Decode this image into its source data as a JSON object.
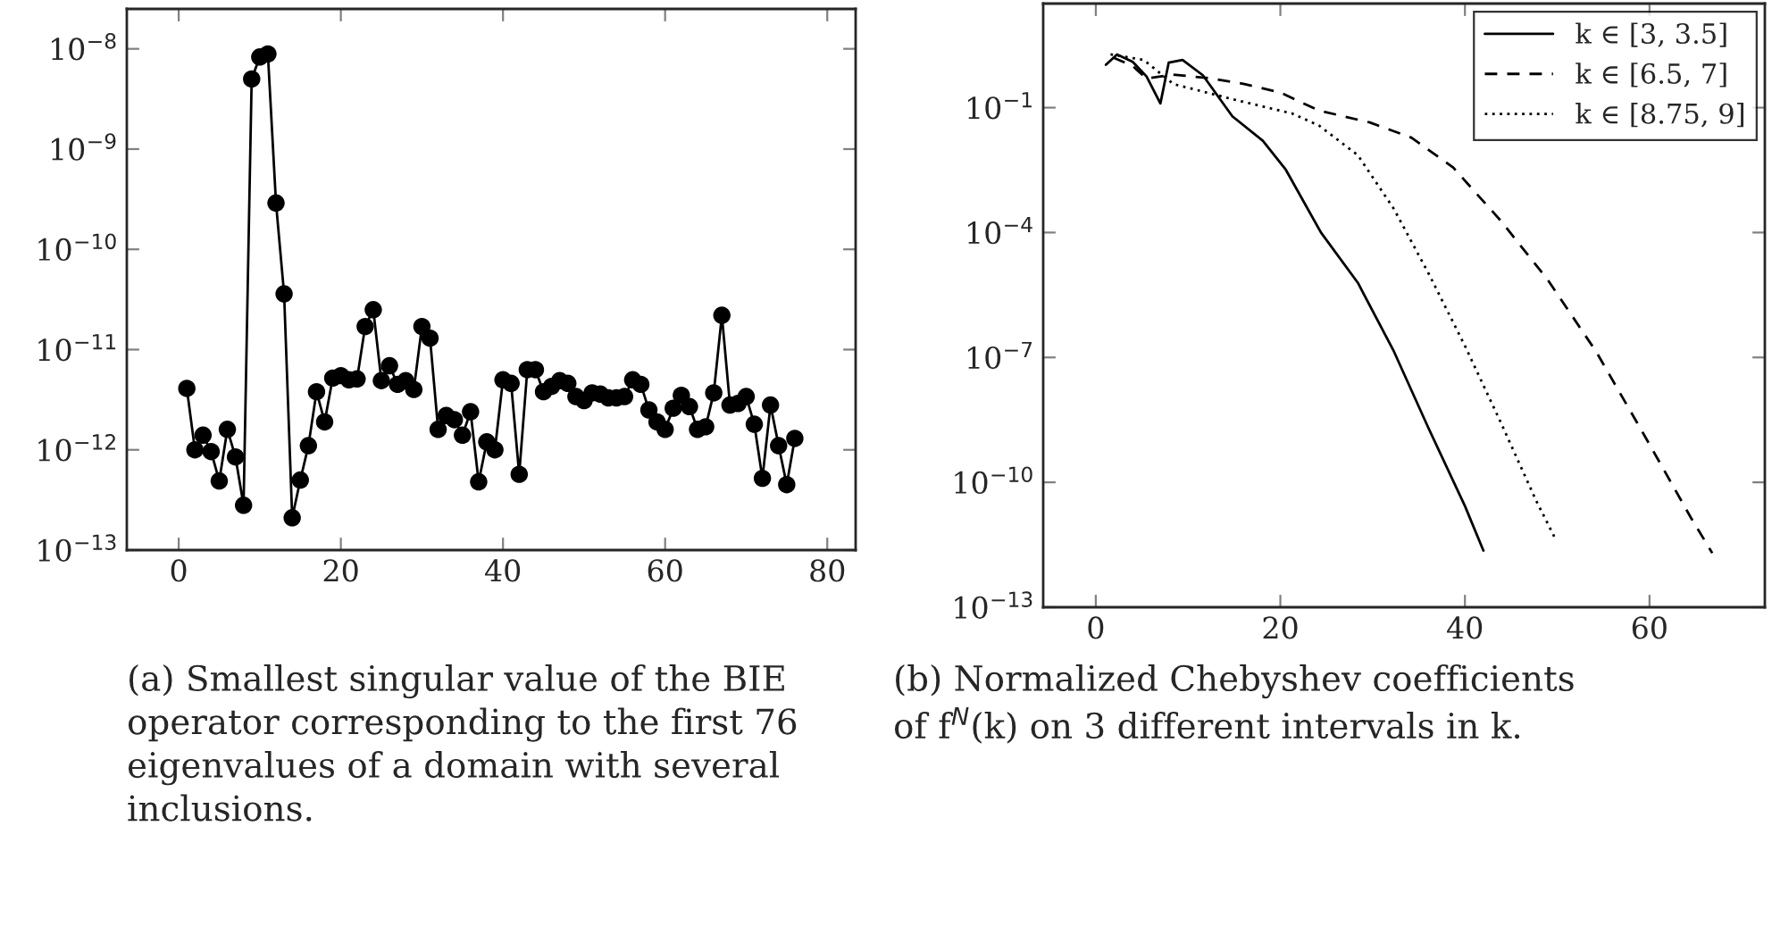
{
  "chart_data": [
    {
      "type": "line",
      "log": true,
      "marker": "circle",
      "grid": false,
      "legend": false,
      "x": [
        1,
        2,
        3,
        4,
        5,
        6,
        7,
        8,
        9,
        10,
        11,
        12,
        13,
        14,
        15,
        16,
        17,
        18,
        19,
        20,
        21,
        22,
        23,
        24,
        25,
        26,
        27,
        28,
        29,
        30,
        31,
        32,
        33,
        34,
        35,
        36,
        37,
        38,
        39,
        40,
        41,
        42,
        43,
        44,
        45,
        46,
        47,
        48,
        49,
        50,
        51,
        52,
        53,
        54,
        55,
        56,
        57,
        58,
        59,
        60,
        61,
        62,
        63,
        64,
        65,
        66,
        67,
        68,
        69,
        70,
        71,
        72,
        73,
        74,
        75,
        76
      ],
      "series": [
        {
          "color": "#000000",
          "values": [
            4.1e-12,
            1e-12,
            1.4e-12,
            9.6e-13,
            4.9e-13,
            1.6e-12,
            8.5e-13,
            2.8e-13,
            5e-09,
            8.3e-09,
            8.9e-09,
            2.9e-10,
            3.6e-11,
            2.1e-13,
            5e-13,
            1.1e-12,
            3.8e-12,
            1.9e-12,
            5.2e-12,
            5.5e-12,
            5e-12,
            5.1e-12,
            1.7e-11,
            2.5e-11,
            4.9e-12,
            6.9e-12,
            4.5e-12,
            4.9e-12,
            4e-12,
            1.7e-11,
            1.3e-11,
            1.6e-12,
            2.2e-12,
            2e-12,
            1.4e-12,
            2.4e-12,
            4.8e-13,
            1.2e-12,
            1e-12,
            5e-12,
            4.6e-12,
            5.7e-13,
            6.3e-12,
            6.3e-12,
            3.8e-12,
            4.3e-12,
            4.9e-12,
            4.6e-12,
            3.4e-12,
            3.1e-12,
            3.7e-12,
            3.6e-12,
            3.3e-12,
            3.3e-12,
            3.4e-12,
            5e-12,
            4.5e-12,
            2.5e-12,
            1.9e-12,
            1.6e-12,
            2.6e-12,
            3.5e-12,
            2.7e-12,
            1.6e-12,
            1.7e-12,
            3.7e-12,
            2.2e-11,
            2.8e-12,
            2.9e-12,
            3.4e-12,
            1.8e-12,
            5.2e-13,
            2.8e-12,
            1.1e-12,
            4.5e-13,
            1.3e-12
          ]
        }
      ],
      "xlim": [
        -6.4,
        83.5
      ],
      "xticks": [
        0,
        20,
        40,
        60,
        80
      ],
      "ylim": [
        1e-13,
        2.5e-08
      ],
      "yticks": [
        {
          "value": 1e-13,
          "label": "10$^{−13}$"
        },
        {
          "value": 1e-12,
          "label": "10$^{−12}$"
        },
        {
          "value": 1e-11,
          "label": "10$^{−11}$"
        },
        {
          "value": 1e-10,
          "label": "10$^{−10}$"
        },
        {
          "value": 1e-09,
          "label": "10$^{−9}$"
        },
        {
          "value": 1e-08,
          "label": "10$^{−8}$"
        }
      ],
      "annotations": [
        "(a) Smallest singular value of the BIE\noperator corresponding to the first 76\neigenvalues of a domain with several\ninclusions."
      ]
    },
    {
      "type": "line",
      "log": true,
      "marker": "none",
      "grid": false,
      "legend": "top right",
      "series": [
        {
          "name": "k ∈ [3, 3.5]",
          "color": "#000000",
          "line_style": "solid",
          "x": [
            1.1,
            2.3,
            4,
            5.5,
            7,
            7.9,
            9.4,
            11.6,
            14.8,
            18.1,
            20.6,
            24.4,
            28.4,
            32.3,
            36.1,
            40,
            42
          ],
          "values": [
            1.07,
            1.9,
            1.26,
            0.56,
            0.126,
            1.2,
            1.4,
            0.6,
            0.062,
            0.016,
            0.0032,
            0.0001,
            6.2e-06,
            1.4e-07,
            1.9e-09,
            2.7e-11,
            2.3e-12
          ]
        },
        {
          "name": "k ∈ [6.5, 7]",
          "color": "#000000",
          "line_style": "dashed",
          "x": [
            1.9,
            4,
            5.5,
            8.4,
            12.3,
            16.1,
            20,
            24.2,
            29.7,
            34.2,
            38.7,
            43.9,
            49,
            54.2,
            59.4,
            64.5,
            66.8
          ],
          "values": [
            1.6,
            1.0,
            0.5,
            0.62,
            0.51,
            0.37,
            0.23,
            0.085,
            0.044,
            0.019,
            0.0037,
            0.00019,
            7.2e-06,
            1.4e-07,
            1.4e-09,
            1.4e-11,
            2e-12
          ]
        },
        {
          "name": "k ∈ [8.75, 9]",
          "color": "#000000",
          "line_style": "dotted",
          "x": [
            1.6,
            5.2,
            8.4,
            14.8,
            21.3,
            24.2,
            28.4,
            32.3,
            36.1,
            40,
            43.9,
            47.7,
            49.8
          ],
          "values": [
            1.9,
            1.4,
            0.37,
            0.16,
            0.072,
            0.037,
            0.0072,
            0.00037,
            1e-05,
            1.9e-07,
            2.7e-09,
            3.7e-11,
            4.4e-12
          ]
        }
      ],
      "xlim": [
        -5.7,
        72.5
      ],
      "xticks": [
        0,
        20,
        40,
        60
      ],
      "ylim": [
        1e-13,
        31.6
      ],
      "yticks": [
        {
          "value": 1e-13,
          "label": "10$^{−13}$"
        },
        {
          "value": 1e-10,
          "label": "10$^{−10}$"
        },
        {
          "value": 1e-07,
          "label": "10$^{−7}$"
        },
        {
          "value": 0.0001,
          "label": "10$^{−4}$"
        },
        {
          "value": 0.1,
          "label": "10$^{−1}$"
        }
      ],
      "annotations": [
        "(b) Normalized Chebyshev coefficients\nof f$^{N}$(k) on 3 different intervals in k."
      ]
    }
  ]
}
